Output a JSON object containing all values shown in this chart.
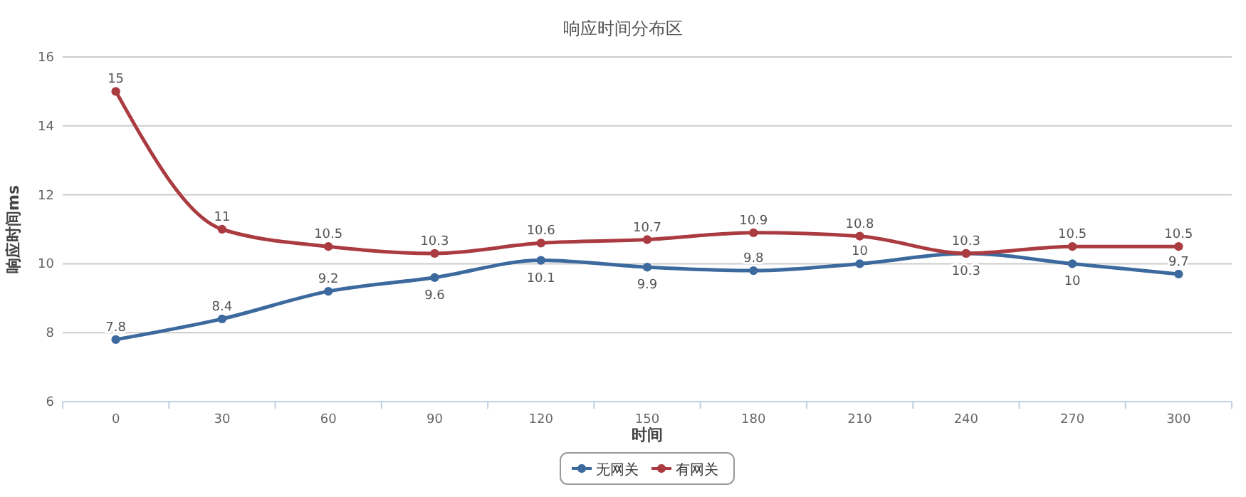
{
  "chart_data": {
    "type": "line",
    "title": "响应时间分布区",
    "xlabel": "时间",
    "ylabel": "响应时间ms",
    "categories": [
      "0",
      "30",
      "60",
      "90",
      "120",
      "150",
      "180",
      "210",
      "240",
      "270",
      "300"
    ],
    "series": [
      {
        "name": "无网关",
        "color": "#3d6a9e",
        "values": [
          7.8,
          8.4,
          9.2,
          9.6,
          10.1,
          9.9,
          9.8,
          10,
          10.3,
          10,
          9.7
        ]
      },
      {
        "name": "有网关",
        "color": "#aa3b40",
        "values": [
          15,
          11,
          10.5,
          10.3,
          10.6,
          10.7,
          10.9,
          10.8,
          10.3,
          10.5,
          10.5
        ]
      }
    ],
    "ylim": [
      6,
      16
    ],
    "yticks": [
      6,
      8,
      10,
      12,
      14,
      16
    ],
    "grid": "y",
    "legend": "bottom",
    "marker": "circle",
    "data_labels": true
  }
}
